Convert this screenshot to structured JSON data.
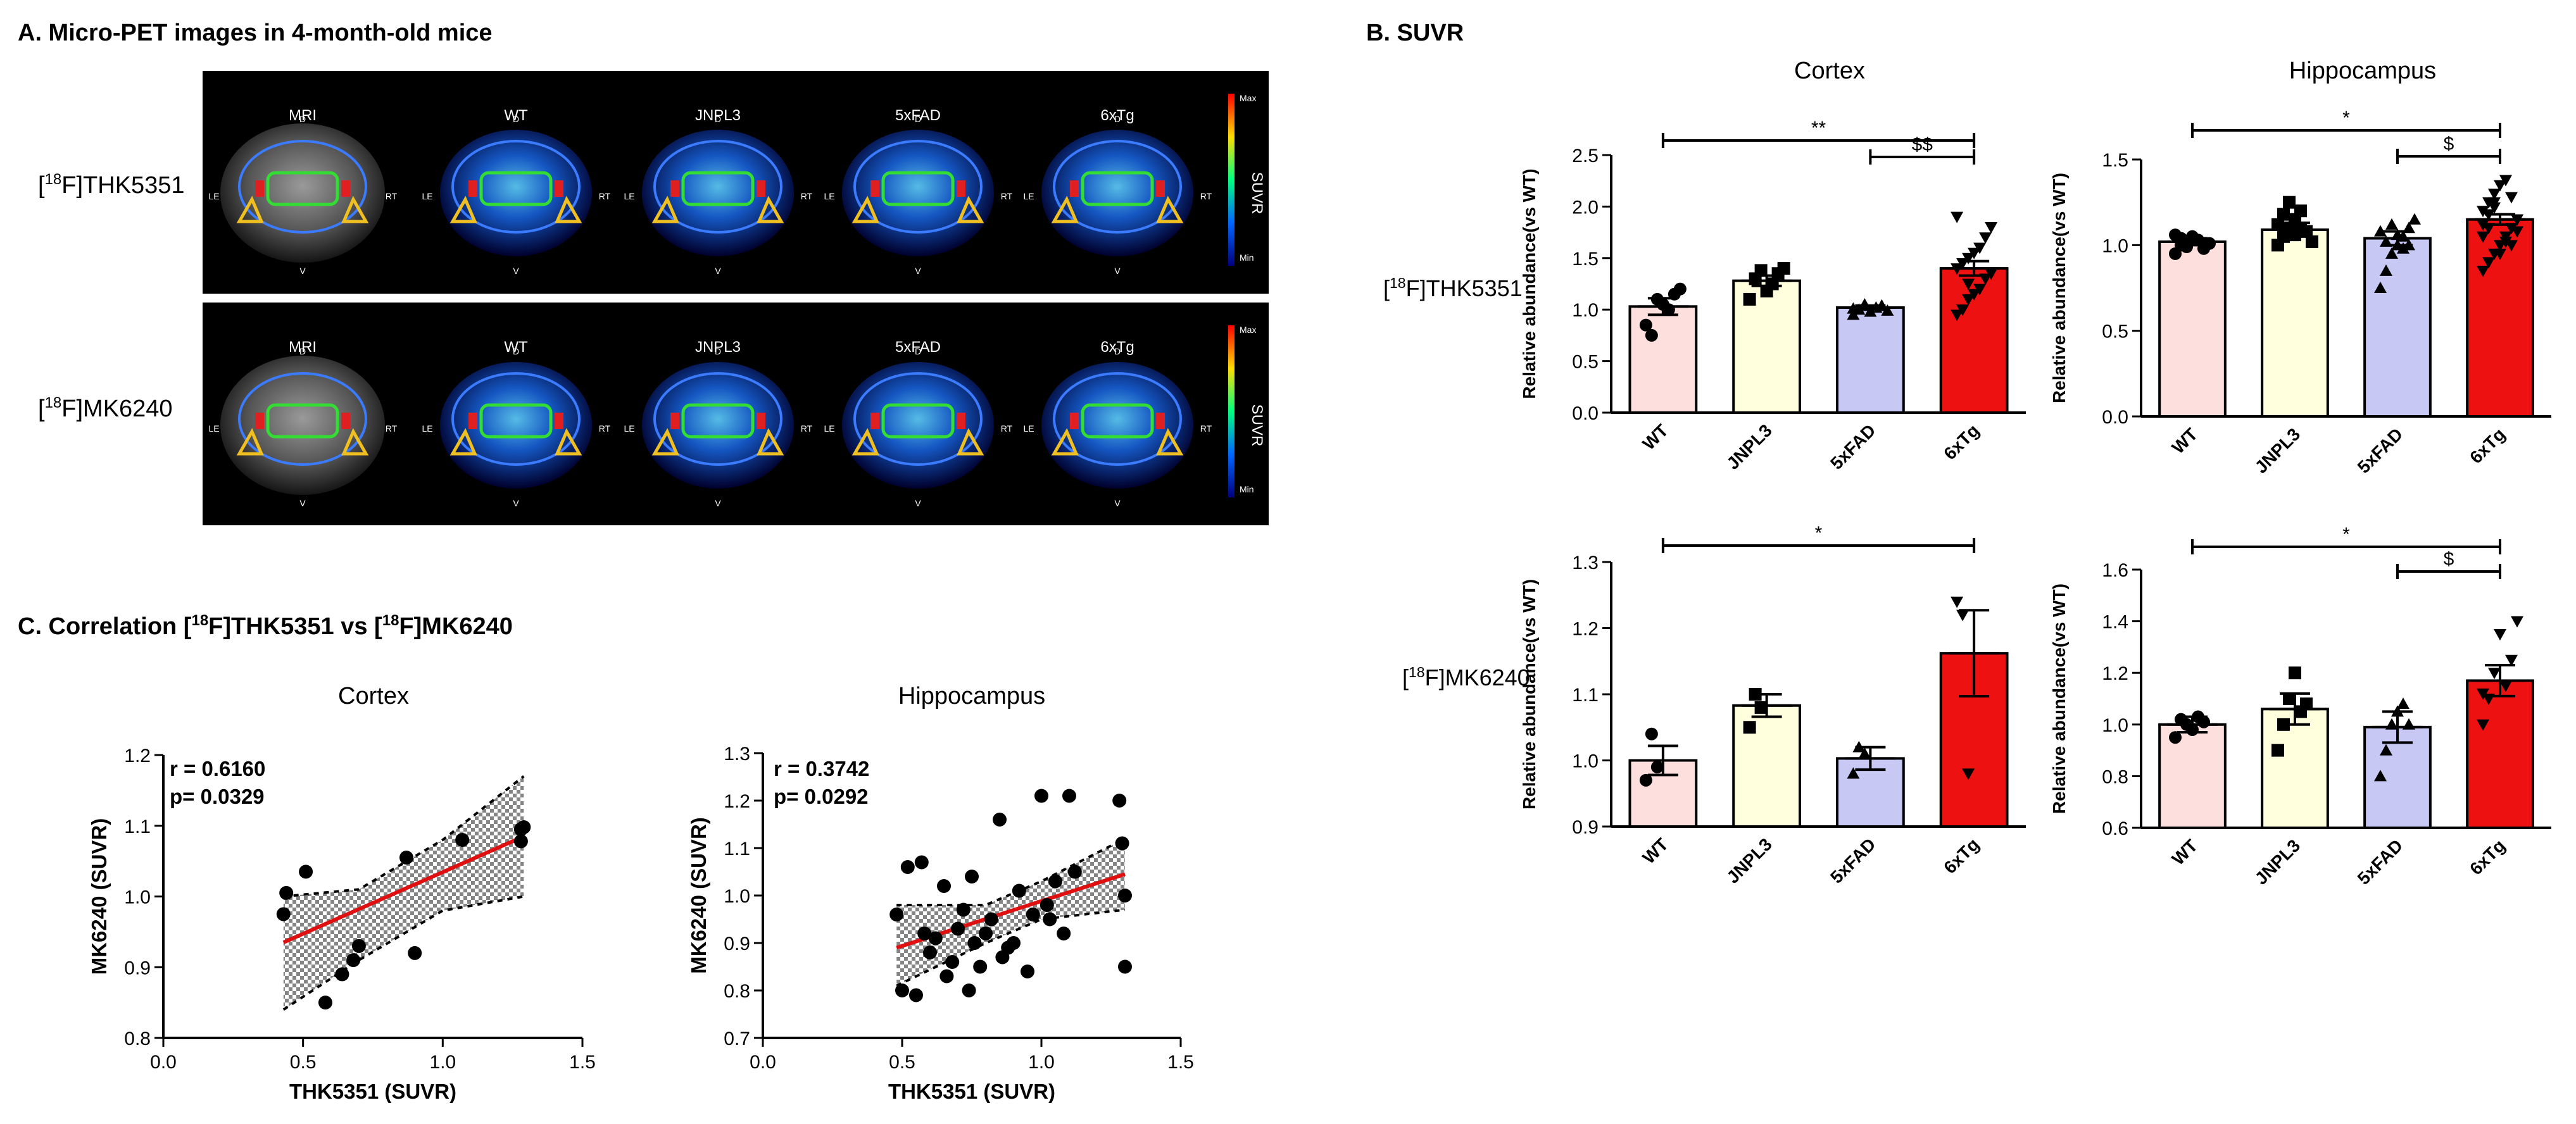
{
  "panel_a": {
    "title": "A. Micro-PET images in 4-month-old mice",
    "columns": [
      "MRI",
      "WT",
      "JNPL3",
      "5xFAD",
      "6xTg"
    ],
    "rows": [
      {
        "label_mass": "18",
        "label_rest": "F]THK5351"
      },
      {
        "label_mass": "18",
        "label_rest": "F]MK6240"
      }
    ],
    "colorbar": {
      "label": "SUVR",
      "max": "Max",
      "min": "Min"
    },
    "orientation": {
      "dorsal": "D",
      "ventral": "V",
      "left": "LE",
      "right": "RT"
    }
  },
  "panel_b": {
    "title": "B. SUVR",
    "column_titles": [
      "Cortex",
      "Hippocampus"
    ],
    "row_labels": [
      {
        "mass": "18",
        "rest": "F]THK5351"
      },
      {
        "mass": "18",
        "rest": "F]MK6240"
      }
    ]
  },
  "panel_c": {
    "title_text": "C. Correlation  [",
    "title_mass1": "18",
    "title_mid": "F]THK5351 vs [",
    "title_mass2": "18",
    "title_end": "F]MK6240"
  },
  "colors": {
    "WT": "#fde0dd",
    "JNPL3": "#ffffdd",
    "5xFAD": "#c8c8f5",
    "6xTg": "#ee1111",
    "regression": "#e01010"
  },
  "chart_data": [
    {
      "id": "b-cortex-thk",
      "type": "bar",
      "title": "Cortex",
      "ylabel": "Relative abundance(vs WT)",
      "categories": [
        "WT",
        "JNPL3",
        "5xFAD",
        "6xTg"
      ],
      "values": [
        1.03,
        1.28,
        1.02,
        1.4
      ],
      "errors": [
        0.08,
        0.05,
        0.02,
        0.07
      ],
      "points": [
        [
          0.85,
          0.75,
          1.1,
          1.05,
          1.0,
          1.15,
          1.2
        ],
        [
          1.1,
          1.3,
          1.38,
          1.18,
          1.25,
          1.35,
          1.4
        ],
        [
          0.95,
          1.0,
          1.05,
          0.98,
          1.02,
          1.04,
          0.99,
          1.01
        ],
        [
          0.95,
          1.0,
          1.1,
          1.15,
          1.2,
          1.3,
          1.35,
          1.4,
          1.45,
          1.5,
          1.55,
          1.6,
          1.7,
          1.8,
          1.9,
          1.0,
          1.25
        ]
      ],
      "markers": [
        "circle",
        "square",
        "triangle-up",
        "triangle-down"
      ],
      "ylim": [
        0.0,
        2.5
      ],
      "yticks": [
        "0.0",
        "0.5",
        "1.0",
        "1.5",
        "2.0",
        "2.5"
      ],
      "sig": [
        {
          "from": 0,
          "to": 3,
          "label": "**"
        },
        {
          "from": 2,
          "to": 3,
          "label": "$$"
        }
      ]
    },
    {
      "id": "b-hippo-thk",
      "type": "bar",
      "title": "Hippocampus",
      "ylabel": "Relative abundance(vs WT)",
      "categories": [
        "WT",
        "JNPL3",
        "5xFAD",
        "6xTg"
      ],
      "values": [
        1.02,
        1.09,
        1.04,
        1.15
      ],
      "errors": [
        0.02,
        0.04,
        0.04,
        0.03
      ],
      "points": [
        [
          0.95,
          1.0,
          1.02,
          1.05,
          1.03,
          0.98,
          1.01,
          1.06,
          1.04,
          0.99
        ],
        [
          1.0,
          1.05,
          1.1,
          1.15,
          1.2,
          1.08,
          1.02,
          1.12,
          1.18,
          1.25,
          1.06,
          1.1
        ],
        [
          0.75,
          0.85,
          0.95,
          1.0,
          1.05,
          1.1,
          1.15,
          1.08,
          1.02,
          1.12,
          1.06,
          0.98,
          1.0
        ],
        [
          0.85,
          0.9,
          0.95,
          1.0,
          1.05,
          1.1,
          1.15,
          1.2,
          1.25,
          1.3,
          1.35,
          1.38,
          1.0,
          1.08,
          1.12,
          1.18,
          1.22,
          0.95,
          1.02,
          1.28,
          1.15,
          1.05,
          1.1,
          1.25
        ]
      ],
      "markers": [
        "circle",
        "square",
        "triangle-up",
        "triangle-down"
      ],
      "ylim": [
        0.0,
        1.5
      ],
      "yticks": [
        "0.0",
        "0.5",
        "1.0",
        "1.5"
      ],
      "sig": [
        {
          "from": 0,
          "to": 3,
          "label": "*"
        },
        {
          "from": 2,
          "to": 3,
          "label": "$"
        }
      ]
    },
    {
      "id": "b-cortex-mk",
      "type": "bar",
      "title": "",
      "ylabel": "Relative abundance(vs WT)",
      "categories": [
        "WT",
        "JNPL3",
        "5xFAD",
        "6xTg"
      ],
      "values": [
        1.0,
        1.083,
        1.003,
        1.162
      ],
      "errors": [
        0.022,
        0.017,
        0.017,
        0.065
      ],
      "points": [
        [
          0.97,
          1.04,
          0.99
        ],
        [
          1.05,
          1.1,
          1.08
        ],
        [
          0.98,
          1.02,
          1.01
        ],
        [
          1.24,
          1.22,
          0.98
        ]
      ],
      "markers": [
        "circle",
        "square",
        "triangle-up",
        "triangle-down"
      ],
      "ylim": [
        0.9,
        1.3
      ],
      "yticks": [
        "0.9",
        "1.0",
        "1.1",
        "1.2",
        "1.3"
      ],
      "sig": [
        {
          "from": 0,
          "to": 3,
          "label": "*"
        }
      ]
    },
    {
      "id": "b-hippo-mk",
      "type": "bar",
      "title": "",
      "ylabel": "Relative abundance(vs WT)",
      "categories": [
        "WT",
        "JNPL3",
        "5xFAD",
        "6xTg"
      ],
      "values": [
        1.0,
        1.06,
        0.99,
        1.17
      ],
      "errors": [
        0.03,
        0.06,
        0.06,
        0.06
      ],
      "points": [
        [
          0.95,
          1.02,
          1.0,
          0.98,
          1.03,
          1.01
        ],
        [
          0.9,
          1.0,
          1.1,
          1.2,
          1.05,
          1.08
        ],
        [
          0.8,
          0.9,
          1.0,
          1.05,
          1.08,
          1.0
        ],
        [
          1.0,
          1.1,
          1.2,
          1.35,
          1.15,
          1.25,
          1.4,
          1.12
        ]
      ],
      "markers": [
        "circle",
        "square",
        "triangle-up",
        "triangle-down"
      ],
      "ylim": [
        0.6,
        1.6
      ],
      "yticks": [
        "0.6",
        "0.8",
        "1.0",
        "1.2",
        "1.4",
        "1.6"
      ],
      "sig": [
        {
          "from": 0,
          "to": 3,
          "label": "*"
        },
        {
          "from": 2,
          "to": 3,
          "label": "$"
        }
      ]
    },
    {
      "id": "c-cortex",
      "type": "scatter",
      "title": "Cortex",
      "xlabel": "THK5351 (SUVR)",
      "ylabel": "MK6240 (SUVR)",
      "xlim": [
        0.0,
        1.5
      ],
      "ylim": [
        0.8,
        1.2
      ],
      "xticks": [
        "0.0",
        "0.5",
        "1.0",
        "1.5"
      ],
      "yticks": [
        "0.8",
        "0.9",
        "1.0",
        "1.1",
        "1.2"
      ],
      "annotation": [
        "r = 0.6160",
        "p= 0.0329"
      ],
      "x": [
        0.43,
        0.44,
        0.51,
        0.58,
        0.64,
        0.68,
        0.7,
        0.87,
        0.9,
        1.07,
        1.28,
        1.28,
        1.29
      ],
      "y": [
        0.975,
        1.005,
        1.035,
        0.85,
        0.89,
        0.91,
        0.93,
        1.055,
        0.92,
        1.08,
        1.095,
        1.078,
        1.098
      ],
      "fit": {
        "x": [
          0.43,
          1.29
        ],
        "y": [
          0.935,
          1.085
        ]
      },
      "band": {
        "x": [
          0.43,
          0.7,
          1.0,
          1.29
        ],
        "upper": [
          1.0,
          1.01,
          1.08,
          1.17
        ],
        "lower": [
          0.84,
          0.91,
          0.98,
          1.0
        ]
      }
    },
    {
      "id": "c-hippo",
      "type": "scatter",
      "title": "Hippocampus",
      "xlabel": "THK5351 (SUVR)",
      "ylabel": "MK6240 (SUVR)",
      "xlim": [
        0.0,
        1.5
      ],
      "ylim": [
        0.7,
        1.3
      ],
      "xticks": [
        "0.0",
        "0.5",
        "1.0",
        "1.5"
      ],
      "yticks": [
        "0.7",
        "0.8",
        "0.9",
        "1.0",
        "1.1",
        "1.2",
        "1.3"
      ],
      "annotation": [
        "r = 0.3742",
        "p= 0.0292"
      ],
      "x": [
        0.48,
        0.5,
        0.52,
        0.55,
        0.57,
        0.6,
        0.62,
        0.65,
        0.68,
        0.7,
        0.72,
        0.74,
        0.75,
        0.78,
        0.8,
        0.82,
        0.85,
        0.88,
        0.9,
        0.92,
        0.95,
        0.97,
        1.0,
        1.02,
        1.05,
        1.08,
        1.1,
        1.12,
        1.28,
        1.29,
        1.3,
        1.3,
        0.58,
        0.66,
        0.86,
        1.03,
        0.76
      ],
      "y": [
        0.96,
        0.8,
        1.06,
        0.79,
        1.07,
        0.88,
        0.91,
        1.02,
        0.86,
        0.93,
        0.97,
        0.8,
        1.04,
        0.85,
        0.92,
        0.95,
        1.16,
        0.89,
        0.9,
        1.01,
        0.84,
        0.96,
        1.21,
        0.98,
        1.03,
        0.92,
        1.21,
        1.05,
        1.2,
        1.11,
        1.0,
        0.85,
        0.92,
        0.83,
        0.87,
        0.95,
        0.9
      ],
      "fit": {
        "x": [
          0.48,
          1.3
        ],
        "y": [
          0.89,
          1.045
        ]
      },
      "band": {
        "x": [
          0.48,
          0.8,
          1.0,
          1.3
        ],
        "upper": [
          0.98,
          0.98,
          1.03,
          1.12
        ],
        "lower": [
          0.81,
          0.9,
          0.95,
          0.97
        ]
      }
    }
  ]
}
